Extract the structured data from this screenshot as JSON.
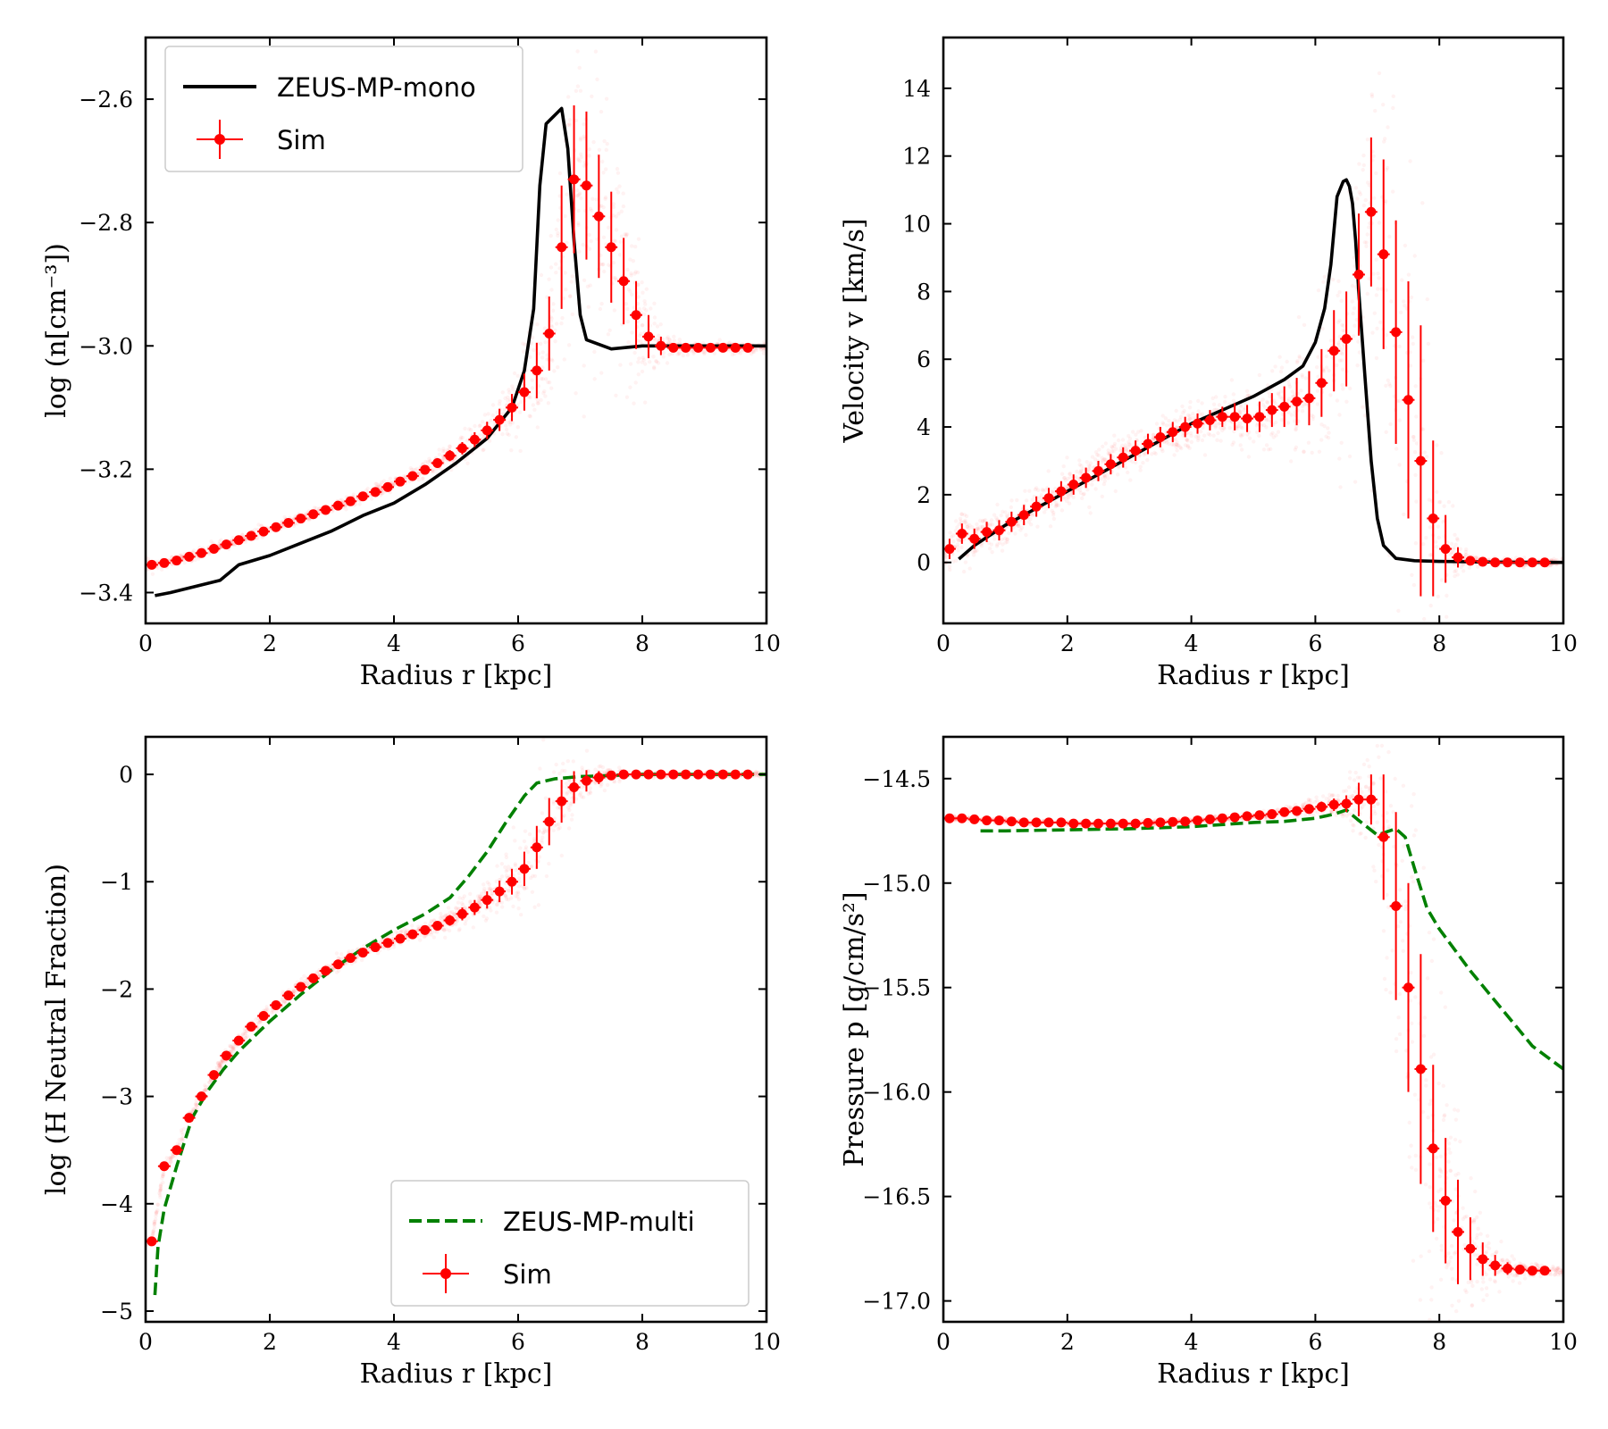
{
  "figure": {
    "panels": 4
  },
  "colors": {
    "sim": "#ff0000",
    "mono": "#000000",
    "multi": "#008000",
    "scatter": "#ff0000"
  },
  "chart_data": [
    {
      "id": "density",
      "type": "line",
      "xlabel": "Radius r [kpc]",
      "ylabel": "log (n[cm⁻³])",
      "xlim": [
        0,
        10
      ],
      "ylim": [
        -3.45,
        -2.5
      ],
      "xticks": [
        0,
        2,
        4,
        6,
        8,
        10
      ],
      "xtick_labels": [
        "0",
        "2",
        "4",
        "6",
        "8",
        "10"
      ],
      "yticks": [
        -3.4,
        -3.2,
        -3.0,
        -2.8,
        -2.6
      ],
      "ytick_labels": [
        "−3.4",
        "−3.2",
        "−3.0",
        "−2.8",
        "−2.6"
      ],
      "legend": {
        "position": "upper-left",
        "entries": [
          "ZEUS-MP-mono",
          "Sim"
        ]
      },
      "line": {
        "name": "ZEUS-MP-mono",
        "style": "solid",
        "x": [
          0.15,
          0.4,
          0.8,
          1.2,
          1.5,
          2.0,
          2.5,
          3.0,
          3.5,
          4.0,
          4.5,
          5.0,
          5.5,
          5.9,
          6.1,
          6.25,
          6.35,
          6.45,
          6.55,
          6.7,
          6.8,
          6.9,
          7.0,
          7.1,
          7.5,
          8.0,
          8.5,
          9.0,
          10.0
        ],
        "y": [
          -3.405,
          -3.4,
          -3.39,
          -3.38,
          -3.355,
          -3.34,
          -3.32,
          -3.3,
          -3.275,
          -3.255,
          -3.225,
          -3.19,
          -3.15,
          -3.1,
          -3.04,
          -2.94,
          -2.74,
          -2.64,
          -2.63,
          -2.615,
          -2.68,
          -2.83,
          -2.95,
          -2.99,
          -3.005,
          -3.0,
          -3.0,
          -3.0,
          -3.0
        ]
      },
      "sim": {
        "name": "Sim",
        "x": [
          0.1,
          0.3,
          0.5,
          0.7,
          0.9,
          1.1,
          1.3,
          1.5,
          1.7,
          1.9,
          2.1,
          2.3,
          2.5,
          2.7,
          2.9,
          3.1,
          3.3,
          3.5,
          3.7,
          3.9,
          4.1,
          4.3,
          4.5,
          4.7,
          4.9,
          5.1,
          5.3,
          5.5,
          5.7,
          5.9,
          6.1,
          6.3,
          6.5,
          6.7,
          6.9,
          7.1,
          7.3,
          7.5,
          7.7,
          7.9,
          8.1,
          8.3,
          8.5,
          8.7,
          8.9,
          9.1,
          9.3,
          9.5,
          9.7
        ],
        "y": [
          -3.355,
          -3.352,
          -3.348,
          -3.342,
          -3.336,
          -3.329,
          -3.322,
          -3.315,
          -3.308,
          -3.301,
          -3.294,
          -3.287,
          -3.28,
          -3.273,
          -3.266,
          -3.259,
          -3.252,
          -3.244,
          -3.237,
          -3.229,
          -3.22,
          -3.211,
          -3.201,
          -3.19,
          -3.178,
          -3.166,
          -3.152,
          -3.137,
          -3.12,
          -3.1,
          -3.075,
          -3.04,
          -2.98,
          -2.84,
          -2.73,
          -2.74,
          -2.79,
          -2.84,
          -2.895,
          -2.95,
          -2.985,
          -3.0,
          -3.003,
          -3.003,
          -3.003,
          -3.003,
          -3.003,
          -3.003,
          -3.003
        ],
        "yerr": [
          0.004,
          0.004,
          0.004,
          0.004,
          0.004,
          0.004,
          0.004,
          0.004,
          0.004,
          0.004,
          0.004,
          0.004,
          0.004,
          0.004,
          0.004,
          0.004,
          0.004,
          0.004,
          0.005,
          0.005,
          0.005,
          0.006,
          0.007,
          0.008,
          0.009,
          0.01,
          0.012,
          0.014,
          0.018,
          0.022,
          0.03,
          0.045,
          0.06,
          0.1,
          0.12,
          0.12,
          0.1,
          0.09,
          0.07,
          0.055,
          0.035,
          0.015,
          0.006,
          0.004,
          0.004,
          0.004,
          0.004,
          0.004,
          0.004
        ]
      }
    },
    {
      "id": "velocity",
      "type": "line",
      "xlabel": "Radius r [kpc]",
      "ylabel": "Velocity v [km/s]",
      "xlim": [
        0,
        10
      ],
      "ylim": [
        -1.8,
        15.5
      ],
      "xticks": [
        0,
        2,
        4,
        6,
        8,
        10
      ],
      "xtick_labels": [
        "0",
        "2",
        "4",
        "6",
        "8",
        "10"
      ],
      "yticks": [
        0,
        2,
        4,
        6,
        8,
        10,
        12,
        14
      ],
      "ytick_labels": [
        "0",
        "2",
        "4",
        "6",
        "8",
        "10",
        "12",
        "14"
      ],
      "line": {
        "name": "ZEUS-MP-mono",
        "style": "solid",
        "x": [
          0.25,
          0.5,
          1.0,
          1.5,
          2.0,
          2.5,
          3.0,
          3.5,
          4.0,
          4.5,
          5.0,
          5.5,
          5.8,
          6.0,
          6.15,
          6.25,
          6.35,
          6.45,
          6.5,
          6.55,
          6.6,
          6.65,
          6.7,
          6.8,
          6.9,
          7.0,
          7.1,
          7.3,
          7.6,
          8.0,
          8.5,
          9.0,
          10.0
        ],
        "y": [
          0.1,
          0.5,
          1.1,
          1.6,
          2.1,
          2.6,
          3.1,
          3.6,
          4.1,
          4.5,
          4.9,
          5.4,
          5.8,
          6.5,
          7.5,
          8.8,
          10.8,
          11.25,
          11.3,
          11.1,
          10.6,
          9.5,
          8.0,
          5.5,
          3.0,
          1.3,
          0.5,
          0.12,
          0.05,
          0.03,
          0.02,
          0.01,
          0.0
        ]
      },
      "sim": {
        "name": "Sim",
        "x": [
          0.1,
          0.3,
          0.5,
          0.7,
          0.9,
          1.1,
          1.3,
          1.5,
          1.7,
          1.9,
          2.1,
          2.3,
          2.5,
          2.7,
          2.9,
          3.1,
          3.3,
          3.5,
          3.7,
          3.9,
          4.1,
          4.3,
          4.5,
          4.7,
          4.9,
          5.1,
          5.3,
          5.5,
          5.7,
          5.9,
          6.1,
          6.3,
          6.5,
          6.7,
          6.9,
          7.1,
          7.3,
          7.5,
          7.7,
          7.9,
          8.1,
          8.3,
          8.5,
          8.7,
          8.9,
          9.1,
          9.3,
          9.5,
          9.7
        ],
        "y": [
          0.4,
          0.85,
          0.7,
          0.9,
          0.95,
          1.2,
          1.4,
          1.65,
          1.9,
          2.1,
          2.3,
          2.5,
          2.7,
          2.9,
          3.1,
          3.3,
          3.5,
          3.7,
          3.85,
          4.0,
          4.1,
          4.2,
          4.3,
          4.3,
          4.25,
          4.3,
          4.5,
          4.6,
          4.75,
          4.85,
          5.3,
          6.25,
          6.6,
          8.5,
          10.35,
          9.1,
          6.8,
          4.8,
          3.0,
          1.3,
          0.4,
          0.15,
          0.05,
          0.02,
          0.0,
          0.0,
          0.0,
          0.0,
          0.0
        ],
        "yerr": [
          0.3,
          0.3,
          0.3,
          0.3,
          0.3,
          0.3,
          0.3,
          0.3,
          0.3,
          0.3,
          0.3,
          0.3,
          0.3,
          0.3,
          0.3,
          0.3,
          0.3,
          0.3,
          0.3,
          0.3,
          0.3,
          0.3,
          0.3,
          0.4,
          0.4,
          0.45,
          0.5,
          0.6,
          0.7,
          0.8,
          1.0,
          1.2,
          1.4,
          1.8,
          2.2,
          2.8,
          3.3,
          3.5,
          4.0,
          2.3,
          1.0,
          0.3,
          0.1,
          0.05,
          0.05,
          0.05,
          0.05,
          0.05,
          0.05
        ]
      }
    },
    {
      "id": "neutral-fraction",
      "type": "line",
      "xlabel": "Radius r [kpc]",
      "ylabel": "log (H Neutral Fraction)",
      "xlim": [
        0,
        10
      ],
      "ylim": [
        -5.1,
        0.35
      ],
      "xticks": [
        0,
        2,
        4,
        6,
        8,
        10
      ],
      "xtick_labels": [
        "0",
        "2",
        "4",
        "6",
        "8",
        "10"
      ],
      "yticks": [
        -5,
        -4,
        -3,
        -2,
        -1,
        0
      ],
      "ytick_labels": [
        "−5",
        "−4",
        "−3",
        "−2",
        "−1",
        "0"
      ],
      "legend": {
        "position": "lower-right",
        "entries": [
          "ZEUS-MP-multi",
          "Sim"
        ]
      },
      "line": {
        "name": "ZEUS-MP-multi",
        "style": "dashed",
        "x": [
          0.15,
          0.2,
          0.3,
          0.5,
          0.75,
          1.0,
          1.25,
          1.5,
          2.0,
          2.5,
          3.0,
          3.5,
          4.0,
          4.5,
          4.9,
          5.2,
          5.5,
          5.8,
          6.1,
          6.3,
          6.45,
          6.6,
          7.0,
          7.5,
          8.0,
          9.0,
          10.0
        ],
        "y": [
          -4.85,
          -4.4,
          -4.05,
          -3.65,
          -3.2,
          -2.95,
          -2.75,
          -2.58,
          -2.3,
          -2.05,
          -1.82,
          -1.62,
          -1.45,
          -1.3,
          -1.15,
          -0.95,
          -0.72,
          -0.45,
          -0.2,
          -0.08,
          -0.06,
          -0.04,
          -0.02,
          -0.01,
          0.0,
          0.0,
          0.0
        ]
      },
      "sim": {
        "name": "Sim",
        "x": [
          0.1,
          0.3,
          0.5,
          0.7,
          0.9,
          1.1,
          1.3,
          1.5,
          1.7,
          1.9,
          2.1,
          2.3,
          2.5,
          2.7,
          2.9,
          3.1,
          3.3,
          3.5,
          3.7,
          3.9,
          4.1,
          4.3,
          4.5,
          4.7,
          4.9,
          5.1,
          5.3,
          5.5,
          5.7,
          5.9,
          6.1,
          6.3,
          6.5,
          6.7,
          6.9,
          7.1,
          7.3,
          7.5,
          7.7,
          7.9,
          8.1,
          8.3,
          8.5,
          8.7,
          8.9,
          9.1,
          9.3,
          9.5,
          9.7
        ],
        "y": [
          -4.35,
          -3.65,
          -3.5,
          -3.2,
          -3.0,
          -2.8,
          -2.62,
          -2.48,
          -2.35,
          -2.25,
          -2.15,
          -2.06,
          -1.98,
          -1.9,
          -1.83,
          -1.77,
          -1.71,
          -1.66,
          -1.61,
          -1.57,
          -1.53,
          -1.49,
          -1.45,
          -1.41,
          -1.36,
          -1.3,
          -1.24,
          -1.17,
          -1.09,
          -1.0,
          -0.88,
          -0.68,
          -0.44,
          -0.25,
          -0.12,
          -0.06,
          -0.03,
          -0.01,
          0.0,
          0.0,
          0.0,
          0.0,
          0.0,
          0.0,
          0.0,
          0.0,
          0.0,
          0.0,
          0.0
        ],
        "yerr": [
          0.02,
          0.03,
          0.03,
          0.03,
          0.03,
          0.03,
          0.03,
          0.03,
          0.03,
          0.03,
          0.03,
          0.03,
          0.03,
          0.03,
          0.03,
          0.03,
          0.03,
          0.03,
          0.03,
          0.03,
          0.03,
          0.03,
          0.03,
          0.04,
          0.05,
          0.06,
          0.07,
          0.08,
          0.1,
          0.12,
          0.16,
          0.2,
          0.22,
          0.2,
          0.15,
          0.1,
          0.06,
          0.04,
          0.02,
          0.01,
          0.01,
          0.01,
          0.01,
          0.01,
          0.01,
          0.01,
          0.01,
          0.01,
          0.01
        ]
      }
    },
    {
      "id": "pressure",
      "type": "line",
      "xlabel": "Radius r [kpc]",
      "ylabel": "Pressure p [g/cm/s²]",
      "xlim": [
        0,
        10
      ],
      "ylim": [
        -17.1,
        -14.3
      ],
      "xticks": [
        0,
        2,
        4,
        6,
        8,
        10
      ],
      "xtick_labels": [
        "0",
        "2",
        "4",
        "6",
        "8",
        "10"
      ],
      "yticks": [
        -17.0,
        -16.5,
        -16.0,
        -15.5,
        -15.0,
        -14.5
      ],
      "ytick_labels": [
        "−17.0",
        "−16.5",
        "−16.0",
        "−15.5",
        "−15.0",
        "−14.5"
      ],
      "line": {
        "name": "ZEUS-MP-multi",
        "style": "dashed",
        "x": [
          0.6,
          1.0,
          2.0,
          3.0,
          4.0,
          5.0,
          5.5,
          6.0,
          6.3,
          6.5,
          6.7,
          7.0,
          7.3,
          7.45,
          7.6,
          7.8,
          8.0,
          8.5,
          9.0,
          9.5,
          10.0
        ],
        "y": [
          -14.75,
          -14.75,
          -14.745,
          -14.74,
          -14.73,
          -14.71,
          -14.705,
          -14.69,
          -14.67,
          -14.65,
          -14.7,
          -14.77,
          -14.74,
          -14.78,
          -14.93,
          -15.12,
          -15.22,
          -15.42,
          -15.6,
          -15.78,
          -15.89
        ]
      },
      "sim": {
        "name": "Sim",
        "x": [
          0.1,
          0.3,
          0.5,
          0.7,
          0.9,
          1.1,
          1.3,
          1.5,
          1.7,
          1.9,
          2.1,
          2.3,
          2.5,
          2.7,
          2.9,
          3.1,
          3.3,
          3.5,
          3.7,
          3.9,
          4.1,
          4.3,
          4.5,
          4.7,
          4.9,
          5.1,
          5.3,
          5.5,
          5.7,
          5.9,
          6.1,
          6.3,
          6.5,
          6.7,
          6.9,
          7.1,
          7.3,
          7.5,
          7.7,
          7.9,
          8.1,
          8.3,
          8.5,
          8.7,
          8.9,
          9.1,
          9.3,
          9.5,
          9.7
        ],
        "y": [
          -14.69,
          -14.69,
          -14.695,
          -14.7,
          -14.7,
          -14.705,
          -14.71,
          -14.71,
          -14.71,
          -14.71,
          -14.715,
          -14.715,
          -14.715,
          -14.715,
          -14.715,
          -14.715,
          -14.712,
          -14.71,
          -14.707,
          -14.705,
          -14.7,
          -14.695,
          -14.69,
          -14.685,
          -14.68,
          -14.675,
          -14.67,
          -14.66,
          -14.655,
          -14.645,
          -14.635,
          -14.625,
          -14.62,
          -14.6,
          -14.6,
          -14.78,
          -15.11,
          -15.5,
          -15.89,
          -16.27,
          -16.52,
          -16.67,
          -16.75,
          -16.8,
          -16.83,
          -16.845,
          -16.85,
          -16.855,
          -16.855
        ],
        "yerr": [
          0.005,
          0.005,
          0.005,
          0.005,
          0.005,
          0.005,
          0.005,
          0.005,
          0.005,
          0.005,
          0.005,
          0.005,
          0.005,
          0.005,
          0.005,
          0.005,
          0.005,
          0.005,
          0.005,
          0.005,
          0.005,
          0.005,
          0.006,
          0.007,
          0.008,
          0.009,
          0.01,
          0.012,
          0.015,
          0.02,
          0.025,
          0.03,
          0.04,
          0.08,
          0.12,
          0.3,
          0.45,
          0.5,
          0.55,
          0.4,
          0.3,
          0.25,
          0.15,
          0.08,
          0.05,
          0.03,
          0.02,
          0.015,
          0.01
        ]
      }
    }
  ]
}
